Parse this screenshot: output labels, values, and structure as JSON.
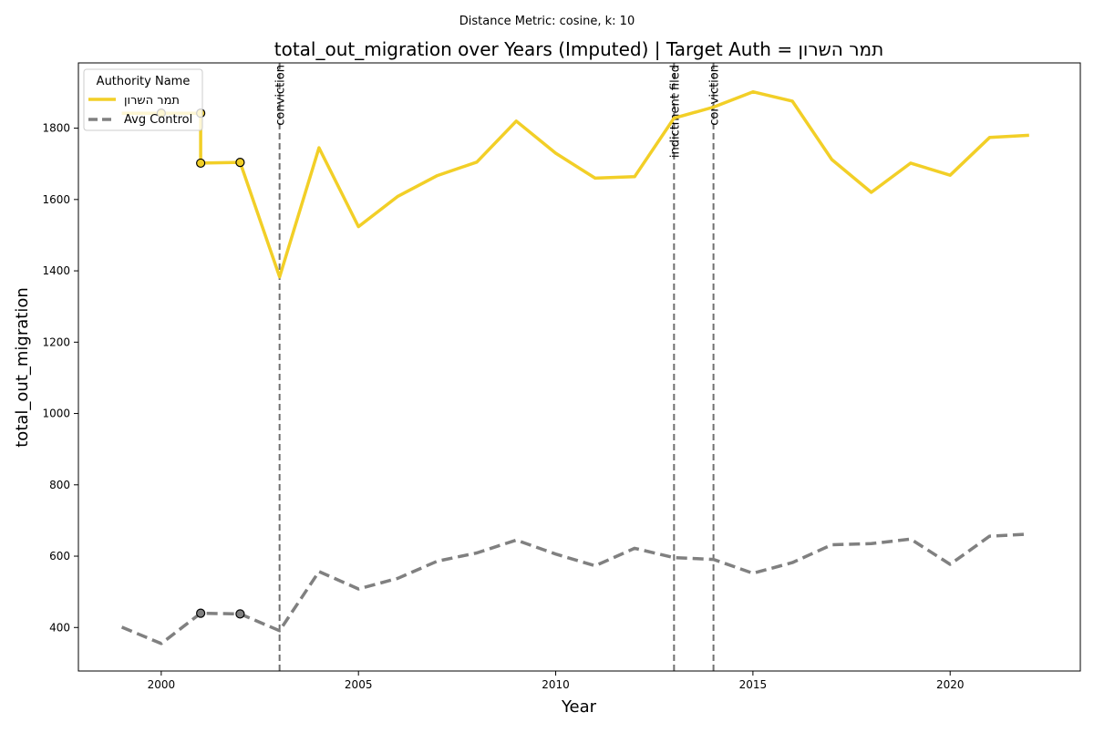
{
  "chart_data": {
    "type": "line",
    "suptitle": "Distance Metric: cosine, k: 10",
    "title": "total_out_migration over Years (Imputed) | Target Auth = תמר השרון",
    "xlabel": "Year",
    "ylabel": "total_out_migration",
    "xlim": [
      1997.9,
      2023.3
    ],
    "ylim": [
      278,
      1983
    ],
    "x_ticks": [
      2000,
      2005,
      2010,
      2015,
      2020
    ],
    "y_ticks": [
      400,
      600,
      800,
      1000,
      1200,
      1400,
      1600,
      1800
    ],
    "grid": false,
    "legend": {
      "title": "Authority Name",
      "placement": "top-left",
      "entries": [
        "תמר השרון",
        "Avg Control"
      ]
    },
    "series": [
      {
        "name": "תמר השרון",
        "color": "#f2cf27",
        "style": "solid",
        "x": [
          1999,
          2000,
          2001,
          2001,
          2002,
          2003,
          2004,
          2005,
          2006,
          2007,
          2008,
          2009,
          2010,
          2011,
          2012,
          2013,
          2014,
          2015,
          2016,
          2017,
          2018,
          2019,
          2020,
          2021,
          2022
        ],
        "y": [
          1842,
          1842,
          1842,
          1702,
          1704,
          1383,
          1745,
          1524,
          1609,
          1667,
          1705,
          1820,
          1730,
          1660,
          1664,
          1828,
          1859,
          1902,
          1876,
          1712,
          1620,
          1702,
          1668,
          1774,
          1780
        ],
        "markers": [
          {
            "x": 2000,
            "y": 1842
          },
          {
            "x": 2001,
            "y": 1842
          },
          {
            "x": 2001,
            "y": 1702
          },
          {
            "x": 2002,
            "y": 1704
          }
        ]
      },
      {
        "name": "Avg Control",
        "color": "#808080",
        "style": "dashed",
        "x": [
          1999,
          2000,
          2001,
          2002,
          2003,
          2004,
          2005,
          2006,
          2007,
          2008,
          2009,
          2010,
          2011,
          2012,
          2013,
          2014,
          2015,
          2016,
          2017,
          2018,
          2019,
          2020,
          2021,
          2022
        ],
        "y": [
          401,
          355,
          440,
          438,
          391,
          557,
          508,
          538,
          586,
          609,
          645,
          606,
          573,
          622,
          596,
          591,
          552,
          582,
          632,
          635,
          648,
          577,
          656,
          662
        ],
        "markers": [
          {
            "x": 2001,
            "y": 440
          },
          {
            "x": 2002,
            "y": 438
          }
        ]
      }
    ],
    "events": [
      {
        "x": 2003,
        "label": "conviction"
      },
      {
        "x": 2013,
        "label": "indictment filed"
      },
      {
        "x": 2014,
        "label": "conviction"
      }
    ],
    "event_line_color": "#707070"
  }
}
